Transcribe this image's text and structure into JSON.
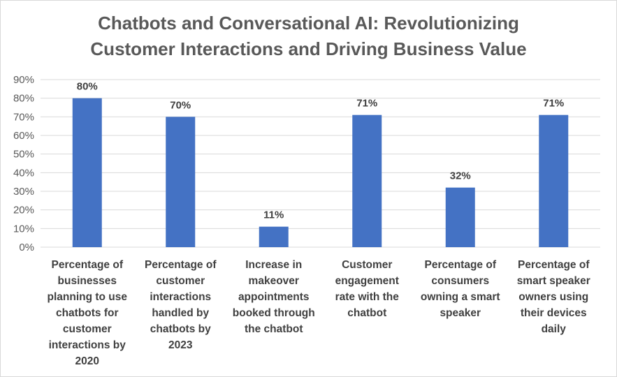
{
  "chart_data": {
    "type": "bar",
    "title_lines": [
      "Chatbots and Conversational AI: Revolutionizing",
      "Customer Interactions and Driving Business Value"
    ],
    "categories": [
      [
        "Percentage of",
        "businesses",
        "planning to use",
        "chatbots for",
        "customer",
        "interactions by",
        "2020"
      ],
      [
        "Percentage of",
        "customer",
        "interactions",
        "handled by",
        "chatbots by",
        "2023"
      ],
      [
        "Increase in",
        "makeover",
        "appointments",
        "booked through",
        "the chatbot"
      ],
      [
        "Customer",
        "engagement",
        "rate with the",
        "chatbot"
      ],
      [
        "Percentage of",
        "consumers",
        "owning a smart",
        "speaker"
      ],
      [
        "Percentage of",
        "smart speaker",
        "owners using",
        "their devices",
        "daily"
      ]
    ],
    "values": [
      80,
      70,
      11,
      71,
      32,
      71
    ],
    "data_labels": [
      "80%",
      "70%",
      "11%",
      "71%",
      "32%",
      "71%"
    ],
    "y_ticks": [
      "0%",
      "10%",
      "20%",
      "30%",
      "40%",
      "50%",
      "60%",
      "70%",
      "80%",
      "90%"
    ],
    "ylim": [
      0,
      90
    ],
    "grid": true,
    "legend": "none",
    "bar_color": "#4472c4",
    "grid_color": "#d9d9d9"
  }
}
